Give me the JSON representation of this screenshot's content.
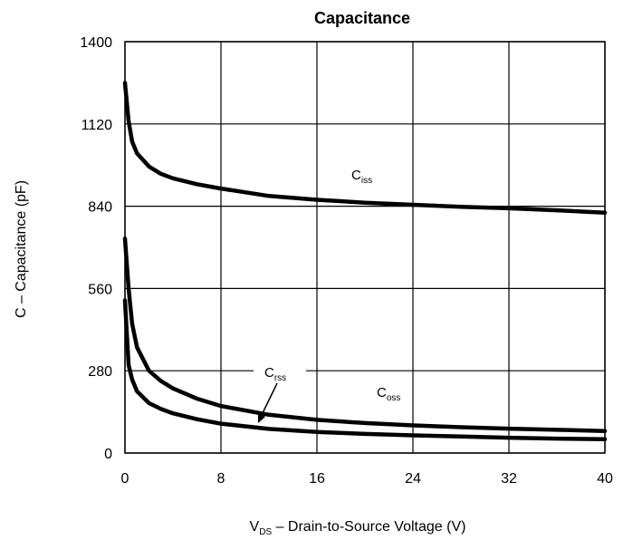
{
  "chart_data": {
    "type": "line",
    "title": "Capacitance",
    "xlabel": {
      "main": "V",
      "sub": "DS",
      "rest": " – Drain-to-Source Voltage (V)"
    },
    "ylabel": "C – Capacitance (pF)",
    "xlim": [
      0,
      40
    ],
    "ylim": [
      0,
      1400
    ],
    "xticks": [
      "0",
      "8",
      "16",
      "24",
      "32",
      "40"
    ],
    "yticks": [
      "0",
      "280",
      "560",
      "840",
      "1120",
      "1400"
    ],
    "grid": true,
    "series": [
      {
        "name": "Ciss",
        "label": {
          "main": "C",
          "sub": "iss"
        },
        "x": [
          0,
          0.3,
          0.6,
          1,
          2,
          3,
          4,
          6,
          8,
          12,
          16,
          20,
          24,
          28,
          32,
          36,
          40
        ],
        "y": [
          1260,
          1130,
          1060,
          1020,
          975,
          950,
          935,
          915,
          900,
          875,
          862,
          852,
          845,
          838,
          833,
          826,
          818
        ]
      },
      {
        "name": "Coss",
        "label": {
          "main": "C",
          "sub": "oss"
        },
        "x": [
          0,
          0.3,
          0.6,
          1,
          2,
          3,
          4,
          6,
          8,
          12,
          16,
          20,
          24,
          28,
          32,
          36,
          40
        ],
        "y": [
          730,
          560,
          440,
          360,
          280,
          245,
          220,
          185,
          160,
          130,
          113,
          102,
          94,
          88,
          83,
          79,
          75
        ]
      },
      {
        "name": "Crss",
        "label": {
          "main": "C",
          "sub": "rss"
        },
        "x": [
          0,
          0.3,
          0.6,
          1,
          2,
          3,
          4,
          6,
          8,
          12,
          16,
          20,
          24,
          28,
          32,
          36,
          40
        ],
        "y": [
          520,
          300,
          250,
          210,
          170,
          150,
          135,
          115,
          100,
          82,
          72,
          65,
          60,
          56,
          52,
          49,
          47
        ]
      }
    ]
  }
}
